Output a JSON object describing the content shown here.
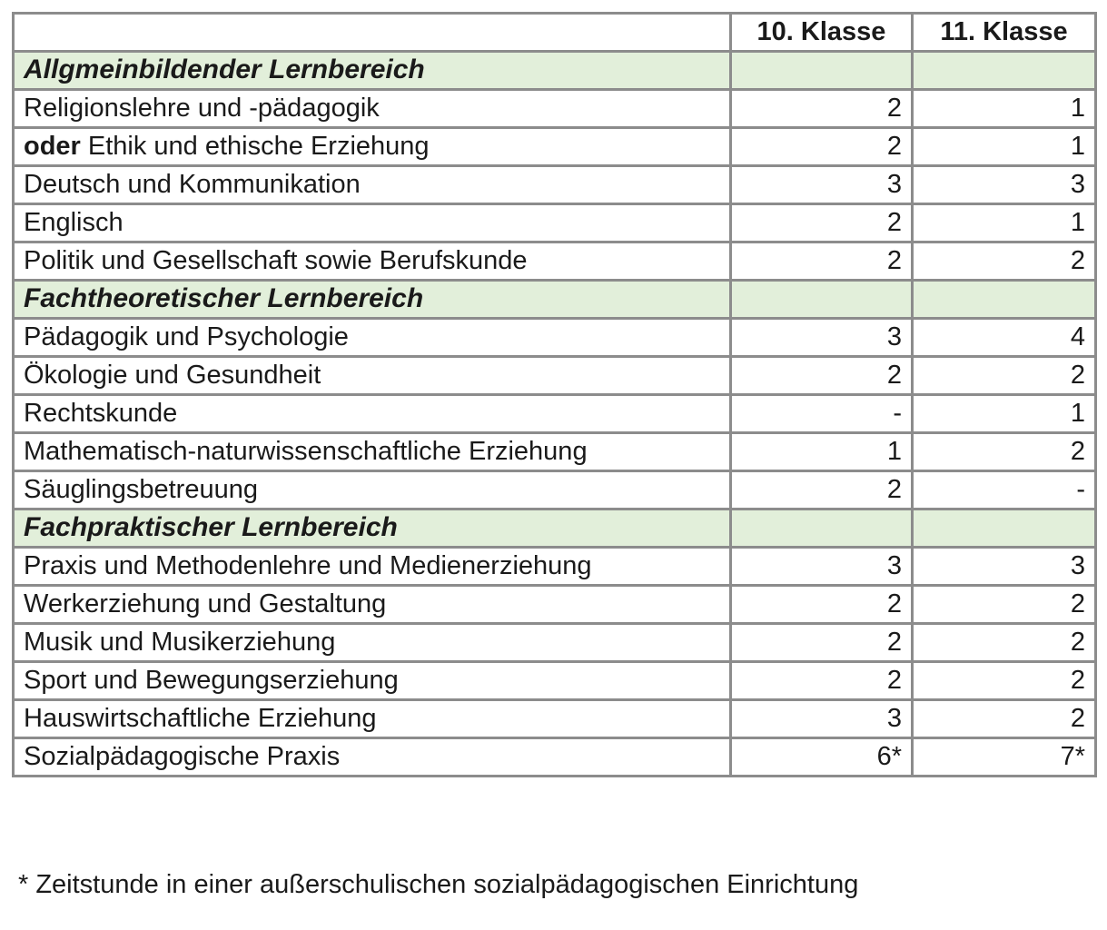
{
  "colors": {
    "section_bg": "#e2efda",
    "border": "#8c8c8c"
  },
  "table": {
    "header": {
      "subject_col": "",
      "col_k10": "10. Klasse",
      "col_k11": "11. Klasse"
    },
    "rows": [
      {
        "type": "section",
        "label": "Allgmeinbildender Lernbereich"
      },
      {
        "type": "subject",
        "label": "Religionslehre und -pädagogik",
        "k10": "2",
        "k11": "1"
      },
      {
        "type": "subject",
        "bold_prefix": "oder",
        "label": "Ethik und ethische Erziehung",
        "k10": "2",
        "k11": "1"
      },
      {
        "type": "subject",
        "label": "Deutsch und Kommunikation",
        "k10": "3",
        "k11": "3"
      },
      {
        "type": "subject",
        "label": "Englisch",
        "k10": "2",
        "k11": "1"
      },
      {
        "type": "subject",
        "label": "Politik und Gesellschaft sowie Berufskunde",
        "k10": "2",
        "k11": "2"
      },
      {
        "type": "section",
        "label": "Fachtheoretischer Lernbereich"
      },
      {
        "type": "subject",
        "label": "Pädagogik und Psychologie",
        "k10": "3",
        "k11": "4"
      },
      {
        "type": "subject",
        "label": "Ökologie und Gesundheit",
        "k10": "2",
        "k11": "2"
      },
      {
        "type": "subject",
        "label": "Rechtskunde",
        "k10": "-",
        "k11": "1"
      },
      {
        "type": "subject",
        "label": "Mathematisch-naturwissenschaftliche Erziehung",
        "k10": "1",
        "k11": "2"
      },
      {
        "type": "subject",
        "label": "Säuglingsbetreuung",
        "k10": "2",
        "k11": "-"
      },
      {
        "type": "section",
        "label": "Fachpraktischer Lernbereich"
      },
      {
        "type": "subject",
        "label": "Praxis und Methodenlehre und Medienerziehung",
        "k10": "3",
        "k11": "3"
      },
      {
        "type": "subject",
        "label": "Werkerziehung und Gestaltung",
        "k10": "2",
        "k11": "2"
      },
      {
        "type": "subject",
        "label": "Musik und Musikerziehung",
        "k10": "2",
        "k11": "2"
      },
      {
        "type": "subject",
        "label": "Sport und Bewegungserziehung",
        "k10": "2",
        "k11": "2"
      },
      {
        "type": "subject",
        "label": "Hauswirtschaftliche Erziehung",
        "k10": "3",
        "k11": "2"
      },
      {
        "type": "subject",
        "label": "Sozialpädagogische Praxis",
        "k10": "6*",
        "k11": "7*"
      }
    ]
  },
  "footnote": "* Zeitstunde in einer außerschulischen sozialpädagogischen Einrichtung"
}
